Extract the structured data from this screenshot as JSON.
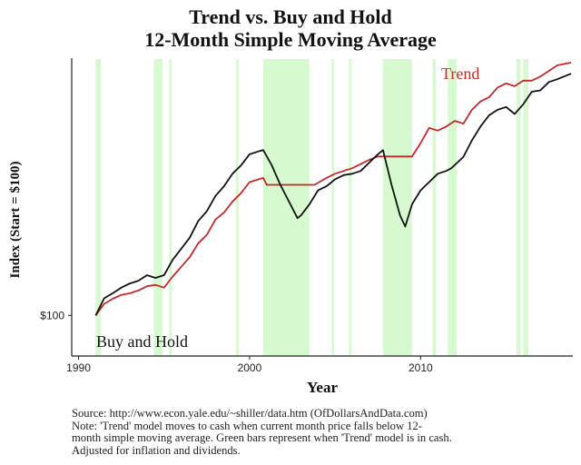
{
  "chart_data": {
    "type": "line",
    "title": "Trend vs. Buy and Hold",
    "subtitle": "12-Month Simple Moving Average",
    "xlabel": "Year",
    "ylabel": "Index (Start = $100)",
    "xlim": [
      1989.6,
      2018.9
    ],
    "ylim": [
      0,
      100
    ],
    "x_ticks": [
      1990,
      2000,
      2010
    ],
    "x_tick_labels": [
      "1990",
      "2000",
      "2010"
    ],
    "y_ticks": [
      {
        "value": 100,
        "label": "$100"
      }
    ],
    "y_scale_note": "index scaled 0-100 along plot height; $100 start at level 11",
    "series": [
      {
        "name": "Trend",
        "color": "#c62828",
        "label": "Trend",
        "x": [
          1991.0,
          1991.5,
          1992.0,
          1992.5,
          1993.0,
          1993.5,
          1994.0,
          1994.5,
          1995.0,
          1995.5,
          1996.0,
          1996.5,
          1997.0,
          1997.5,
          1998.0,
          1998.5,
          1999.0,
          1999.5,
          2000.0,
          2000.8,
          2001.0,
          2002.0,
          2003.0,
          2003.4,
          2003.8,
          2004.5,
          2005.0,
          2005.5,
          2006.0,
          2006.5,
          2007.0,
          2007.5,
          2008.0,
          2009.0,
          2009.5,
          2010.0,
          2010.5,
          2011.0,
          2011.5,
          2012.0,
          2012.5,
          2013.0,
          2013.5,
          2014.0,
          2014.5,
          2015.0,
          2015.5,
          2016.0,
          2016.5,
          2017.0,
          2017.5,
          2018.0,
          2018.8
        ],
        "values": [
          11.0,
          15.2,
          17.0,
          18.4,
          19.0,
          20.0,
          21.5,
          22.0,
          21.0,
          25.0,
          28.5,
          32.0,
          37.0,
          40.0,
          45.5,
          48.0,
          52.0,
          55.0,
          59.0,
          60.5,
          58.0,
          58.0,
          58.0,
          58.0,
          58.0,
          60.5,
          62.0,
          63.0,
          64.0,
          65.5,
          67.0,
          68.2,
          68.2,
          68.2,
          68.2,
          73.0,
          78.5,
          77.5,
          79.0,
          81.0,
          80.0,
          85.0,
          88.0,
          89.5,
          93.0,
          94.5,
          93.5,
          95.5,
          95.5,
          97.0,
          99.0,
          101.0,
          102.0
        ]
      },
      {
        "name": "Buy and Hold",
        "color": "#111111",
        "label": "Buy and Hold",
        "x": [
          1991.0,
          1991.5,
          1992.0,
          1992.5,
          1993.0,
          1993.5,
          1994.0,
          1994.5,
          1995.0,
          1995.5,
          1996.0,
          1996.5,
          1997.0,
          1997.5,
          1998.0,
          1998.5,
          1999.0,
          1999.5,
          2000.0,
          2000.5,
          2000.8,
          2001.3,
          2001.8,
          2002.3,
          2002.8,
          2003.0,
          2003.5,
          2004.0,
          2004.5,
          2005.0,
          2005.5,
          2006.0,
          2006.5,
          2007.0,
          2007.5,
          2007.8,
          2008.3,
          2008.8,
          2009.1,
          2009.5,
          2010.0,
          2010.5,
          2011.0,
          2011.5,
          2011.8,
          2012.5,
          2013.0,
          2013.5,
          2014.0,
          2014.5,
          2015.0,
          2015.5,
          2016.0,
          2016.5,
          2017.0,
          2017.5,
          2018.0,
          2018.8
        ],
        "values": [
          11.0,
          17.2,
          19.0,
          21.0,
          22.5,
          23.5,
          25.5,
          24.5,
          25.5,
          31.0,
          35.0,
          39.0,
          45.0,
          48.5,
          54.0,
          57.5,
          62.0,
          65.0,
          69.0,
          70.0,
          70.5,
          65.0,
          58.0,
          52.0,
          46.0,
          47.0,
          51.0,
          56.0,
          57.5,
          60.0,
          61.5,
          62.0,
          63.0,
          66.0,
          69.0,
          70.5,
          58.0,
          47.0,
          43.0,
          51.0,
          56.0,
          59.0,
          62.0,
          63.0,
          64.0,
          68.0,
          74.0,
          79.0,
          83.0,
          85.0,
          86.0,
          83.5,
          87.0,
          91.5,
          92.0,
          95.0,
          96.0,
          98.0
        ]
      }
    ],
    "cash_periods": [
      [
        1991.0,
        1991.3
      ],
      [
        1994.4,
        1994.9
      ],
      [
        1995.3,
        1995.45
      ],
      [
        1999.2,
        1999.35
      ],
      [
        2000.8,
        2003.5
      ],
      [
        2004.8,
        2004.95
      ],
      [
        2005.8,
        2005.95
      ],
      [
        2007.8,
        2009.5
      ],
      [
        2010.7,
        2010.9
      ],
      [
        2011.6,
        2012.1
      ],
      [
        2015.6,
        2015.85
      ],
      [
        2016.0,
        2016.3
      ]
    ],
    "cash_color": "#d7f9cf",
    "legend_placement": "direct labels: Trend top-right, Buy and Hold bottom-left"
  },
  "source": {
    "line1": "Source: http://www.econ.yale.edu/~shiller/data.htm (OfDollarsAndData.com)",
    "line2": "Note: 'Trend' model moves to cash when current month price falls below 12-",
    "line3": "month simple moving average. Green bars represent when 'Trend' model is in cash.",
    "line4": "Adjusted for inflation and dividends."
  }
}
